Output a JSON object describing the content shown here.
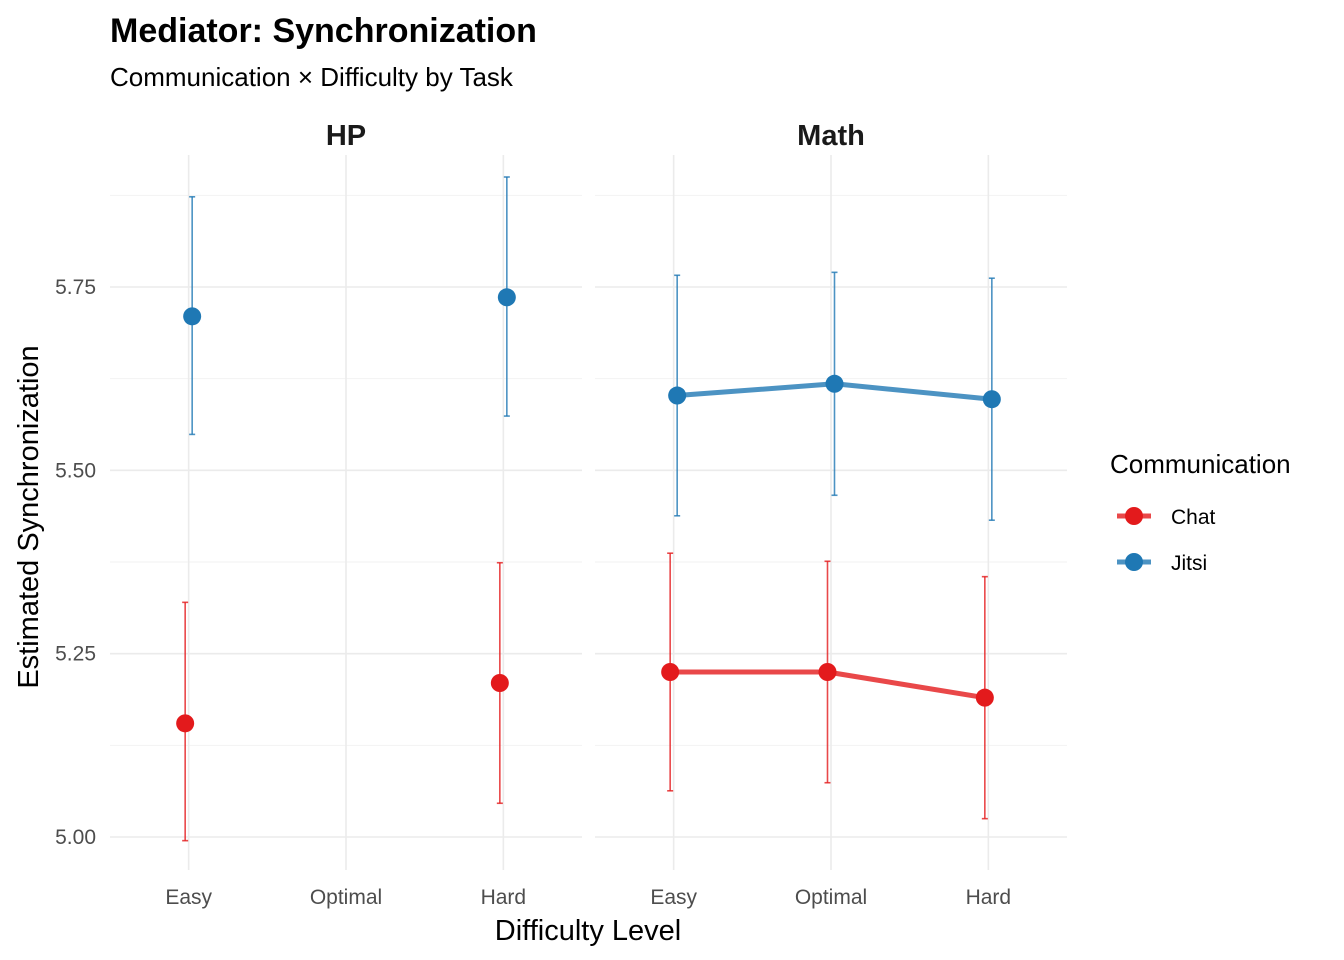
{
  "chart_data": {
    "type": "line",
    "title": "Mediator: Synchronization",
    "subtitle": "Communication × Difficulty by Task",
    "xlabel": "Difficulty Level",
    "ylabel": "Estimated Synchronization",
    "categories": [
      "Easy",
      "Optimal",
      "Hard"
    ],
    "ylim": [
      4.955,
      5.93
    ],
    "yticks": [
      "5.00",
      "5.25",
      "5.50",
      "5.75"
    ],
    "grid": true,
    "legend": {
      "title": "Communication",
      "position": "right",
      "entries": [
        "Chat",
        "Jitsi"
      ]
    },
    "colors": {
      "Chat": "#e31a1c",
      "Jitsi": "#1f78b4"
    },
    "facets": [
      {
        "panel": "HP",
        "series": [
          {
            "name": "Chat",
            "points": [
              {
                "x": "Easy",
                "y": 5.155,
                "lower": 4.995,
                "upper": 5.32
              },
              {
                "x": "Hard",
                "y": 5.21,
                "lower": 5.046,
                "upper": 5.374
              }
            ]
          },
          {
            "name": "Jitsi",
            "points": [
              {
                "x": "Easy",
                "y": 5.71,
                "lower": 5.549,
                "upper": 5.873
              },
              {
                "x": "Hard",
                "y": 5.736,
                "lower": 5.574,
                "upper": 5.9
              }
            ]
          }
        ]
      },
      {
        "panel": "Math",
        "series": [
          {
            "name": "Chat",
            "points": [
              {
                "x": "Easy",
                "y": 5.225,
                "lower": 5.063,
                "upper": 5.387
              },
              {
                "x": "Optimal",
                "y": 5.225,
                "lower": 5.074,
                "upper": 5.376
              },
              {
                "x": "Hard",
                "y": 5.19,
                "lower": 5.025,
                "upper": 5.355
              }
            ]
          },
          {
            "name": "Jitsi",
            "points": [
              {
                "x": "Easy",
                "y": 5.602,
                "lower": 5.438,
                "upper": 5.766
              },
              {
                "x": "Optimal",
                "y": 5.618,
                "lower": 5.466,
                "upper": 5.77
              },
              {
                "x": "Hard",
                "y": 5.597,
                "lower": 5.432,
                "upper": 5.762
              }
            ]
          }
        ]
      }
    ]
  }
}
